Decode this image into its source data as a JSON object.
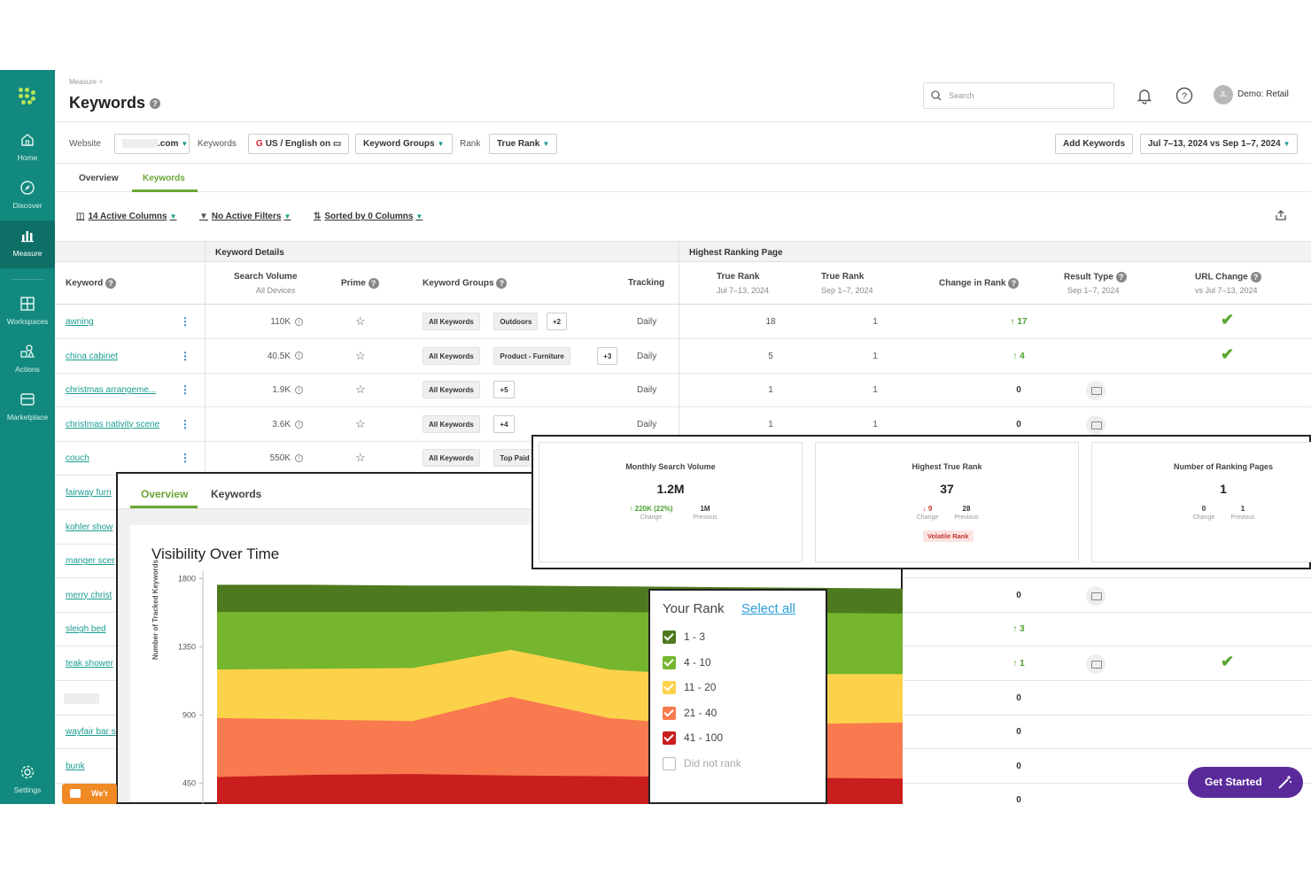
{
  "sidebar": {
    "items": [
      {
        "label": "Home",
        "icon": "home-icon"
      },
      {
        "label": "Discover",
        "icon": "compass-icon"
      },
      {
        "label": "Measure",
        "icon": "bar-chart-icon"
      },
      {
        "label": "Workspaces",
        "icon": "grid-icon"
      },
      {
        "label": "Actions",
        "icon": "shapes-icon"
      },
      {
        "label": "Marketplace",
        "icon": "store-icon"
      },
      {
        "label": "Settings",
        "icon": "gear-icon"
      }
    ],
    "active": "Measure"
  },
  "header": {
    "breadcrumb": "Measure >",
    "title": "Keywords",
    "search_placeholder": "Search",
    "avatar_initials": "JL",
    "account": "Demo: Retail"
  },
  "filters": {
    "website_label": "Website",
    "website_value": ".com",
    "keywords_label": "Keywords",
    "keywords_value": "US / English on",
    "keyword_groups": "Keyword Groups",
    "rank_label": "Rank",
    "rank_value": "True Rank",
    "add_keywords": "Add Keywords",
    "date_range": "Jul 7–13, 2024 vs Sep 1–7, 2024"
  },
  "tabs": {
    "overview": "Overview",
    "keywords": "Keywords"
  },
  "toolbar": {
    "columns": "14 Active Columns",
    "filters": "No Active Filters",
    "sorted": "Sorted by 0 Columns"
  },
  "table": {
    "group_headers": {
      "details": "Keyword Details",
      "page": "Highest Ranking Page"
    },
    "columns": {
      "keyword": "Keyword",
      "search_volume": "Search Volume",
      "search_volume_sub": "All Devices",
      "prime": "Prime",
      "keyword_groups": "Keyword Groups",
      "tracking": "Tracking",
      "true_rank_1": "True Rank",
      "true_rank_1_sub": "Jul 7–13, 2024",
      "true_rank_2": "True Rank",
      "true_rank_2_sub": "Sep 1–7, 2024",
      "change_in_rank": "Change in Rank",
      "result_type": "Result Type",
      "result_type_sub": "Sep 1–7, 2024",
      "url_change": "URL Change",
      "url_change_sub": "vs Jul 7–13, 2024"
    },
    "rows": [
      {
        "keyword": "awning",
        "volume": "110K",
        "tags": [
          "All Keywords",
          "Outdoors",
          "+2"
        ],
        "tracking": "Daily",
        "rank1": "18",
        "rank2": "1",
        "change": "17",
        "dir": "up",
        "result": false,
        "url": true
      },
      {
        "keyword": "china cabinet",
        "volume": "40.5K",
        "tags": [
          "All Keywords",
          "Product - Furniture",
          "+3"
        ],
        "tracking": "Daily",
        "rank1": "5",
        "rank2": "1",
        "change": "4",
        "dir": "up",
        "result": false,
        "url": true
      },
      {
        "keyword": "christmas arrangeme...",
        "volume": "1.9K",
        "tags": [
          "All Keywords",
          "+5"
        ],
        "tracking": "Daily",
        "rank1": "1",
        "rank2": "1",
        "change": "0",
        "dir": "none",
        "result": true,
        "url": false
      },
      {
        "keyword": "christmas nativity scene",
        "volume": "3.6K",
        "tags": [
          "All Keywords",
          "+4"
        ],
        "tracking": "Daily",
        "rank1": "1",
        "rank2": "1",
        "change": "0",
        "dir": "none",
        "result": true,
        "url": false
      },
      {
        "keyword": "couch",
        "volume": "550K",
        "tags": [
          "All Keywords",
          "Top Paid"
        ],
        "tracking": "",
        "rank1": "",
        "rank2": "",
        "change": "",
        "dir": "none",
        "result": false,
        "url": false
      },
      {
        "keyword": "fairway furn",
        "change": "",
        "dir": "none"
      },
      {
        "keyword": "kohler show",
        "change": "",
        "dir": "none"
      },
      {
        "keyword": "manger scer",
        "change": "",
        "dir": "none"
      },
      {
        "keyword": "merry christ",
        "change": "0",
        "dir": "none",
        "result": true
      },
      {
        "keyword": "sleigh bed",
        "change": "3",
        "dir": "up"
      },
      {
        "keyword": "teak shower",
        "change": "1",
        "dir": "up",
        "result": true,
        "url": true
      },
      {
        "keyword": "",
        "change": "0",
        "dir": "none"
      },
      {
        "keyword": "wayfair bar s",
        "change": "0",
        "dir": "none"
      },
      {
        "keyword": "bunk",
        "change": "0",
        "dir": "none"
      },
      {
        "keyword": "",
        "change": "0",
        "dir": "none"
      }
    ]
  },
  "overview_panel": {
    "tab_overview": "Overview",
    "tab_keywords": "Keywords",
    "chart_title": "Visibility Over Time"
  },
  "metrics": [
    {
      "title": "Monthly Search Volume",
      "value": "1.2M",
      "change": "220K (22%)",
      "change_label": "Change",
      "previous": "1M",
      "previous_label": "Previous",
      "dir": "up"
    },
    {
      "title": "Highest True Rank",
      "value": "37",
      "change": "9",
      "change_label": "Change",
      "previous": "28",
      "previous_label": "Previous",
      "dir": "down",
      "badge": "Volatile Rank"
    },
    {
      "title": "Number of Ranking Pages",
      "value": "1",
      "change": "0",
      "change_label": "Change",
      "previous": "1",
      "previous_label": "Previous",
      "dir": "none"
    }
  ],
  "rank_legend": {
    "title": "Your Rank",
    "select_all": "Select all",
    "items": [
      {
        "label": "1 - 3",
        "color": "#4e7a1f",
        "checked": true
      },
      {
        "label": "4 - 10",
        "color": "#76b52e",
        "checked": true
      },
      {
        "label": "11 - 20",
        "color": "#fcd24a",
        "checked": true
      },
      {
        "label": "21 - 40",
        "color": "#f97a4e",
        "checked": true
      },
      {
        "label": "41 - 100",
        "color": "#c81e1e",
        "checked": true
      },
      {
        "label": "Did not rank",
        "color": "#ffffff",
        "checked": false
      }
    ]
  },
  "chart_data": {
    "type": "area",
    "title": "Visibility Over Time",
    "ylabel": "Number of Tracked Keywords",
    "yticks": [
      450,
      900,
      1350,
      1800
    ],
    "ylim": [
      300,
      1850
    ],
    "x": [
      0,
      1,
      2,
      3,
      4,
      5,
      6,
      7
    ],
    "series": [
      {
        "name": "41 - 100",
        "color": "#c81e1e",
        "values": [
          490,
          505,
          510,
          500,
          495,
          490,
          485,
          480
        ]
      },
      {
        "name": "21 - 40",
        "color": "#f97a4e",
        "values": [
          880,
          870,
          860,
          1020,
          880,
          830,
          840,
          850
        ]
      },
      {
        "name": "11 - 20",
        "color": "#fcd24a",
        "values": [
          1200,
          1205,
          1210,
          1330,
          1200,
          1160,
          1170,
          1170
        ]
      },
      {
        "name": "4 - 10",
        "color": "#76b52e",
        "values": [
          1580,
          1580,
          1580,
          1585,
          1580,
          1575,
          1575,
          1570
        ]
      },
      {
        "name": "1 - 3",
        "color": "#4e7a1f",
        "values": [
          1760,
          1760,
          1755,
          1755,
          1750,
          1745,
          1740,
          1735
        ]
      }
    ]
  },
  "cta": {
    "get_started": "Get Started",
    "chat": "We'r"
  }
}
